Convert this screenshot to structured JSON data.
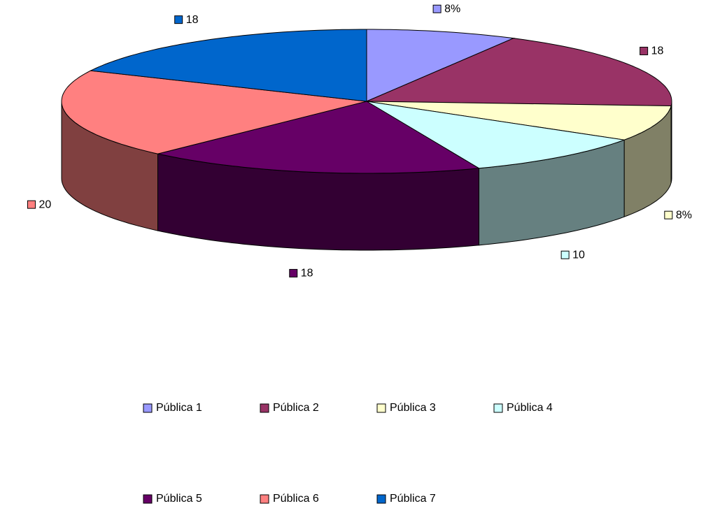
{
  "chart_data": {
    "type": "pie",
    "categories": [
      "Pública 1",
      "Pública 2",
      "Pública 3",
      "Pública 4",
      "Pública 5",
      "Pública 6",
      "Pública 7"
    ],
    "values": [
      8,
      18,
      8,
      10,
      18,
      20,
      18
    ],
    "value_labels": [
      "8%",
      "18",
      "8%",
      "10",
      "18",
      "20",
      "18"
    ],
    "colors": [
      "#9999ff",
      "#993366",
      "#ffffcc",
      "#ccffff",
      "#660066",
      "#ff8080",
      "#0066cc"
    ],
    "legend": "bottom"
  }
}
